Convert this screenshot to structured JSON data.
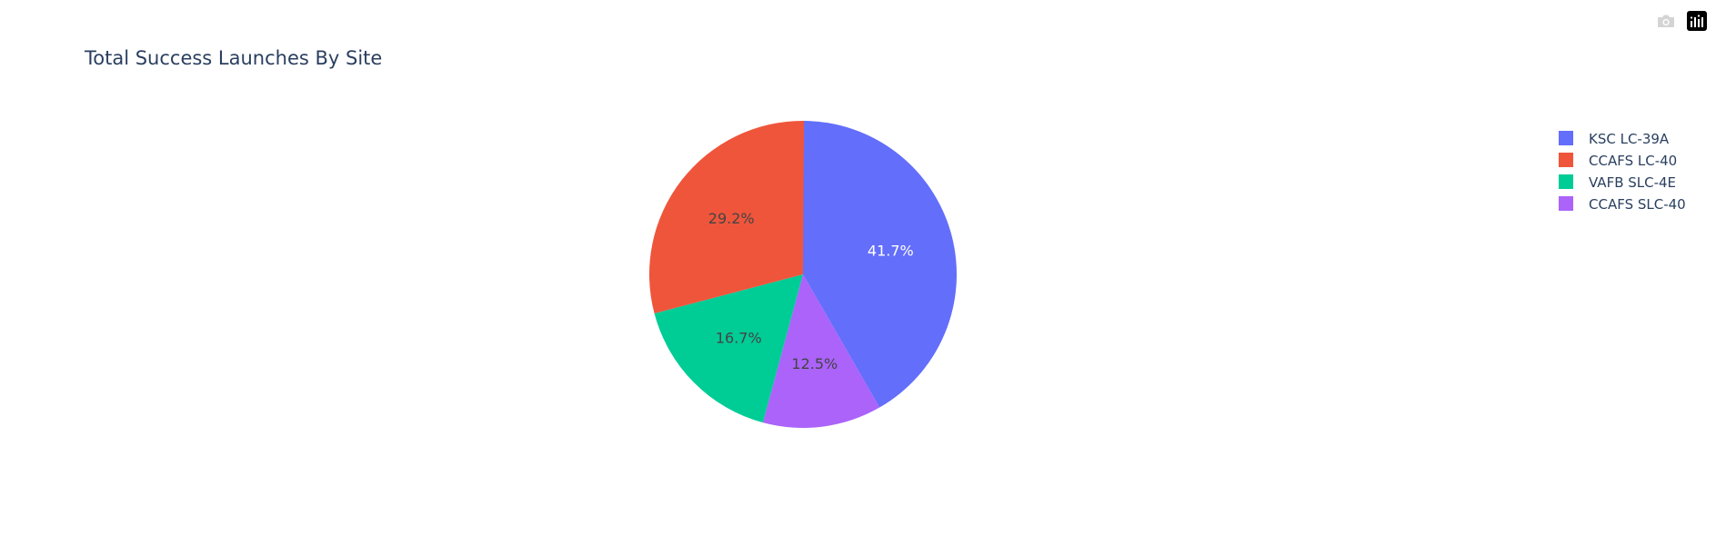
{
  "modebar": {
    "camera_icon": "camera-icon",
    "plotly_logo_icon": "plotly-logo-icon"
  },
  "chart_data": {
    "type": "pie",
    "title": "Total Success Launches By Site",
    "labels": [
      "KSC LC-39A",
      "CCAFS LC-40",
      "VAFB SLC-4E",
      "CCAFS SLC-40"
    ],
    "percentages": [
      41.7,
      29.2,
      16.7,
      12.5
    ],
    "value_labels": [
      "41.7%",
      "29.2%",
      "16.7%",
      "12.5%"
    ],
    "slice_order_clockwise": [
      "KSC LC-39A",
      "CCAFS SLC-40",
      "VAFB SLC-4E",
      "CCAFS LC-40"
    ],
    "colors": {
      "KSC LC-39A": "#636efa",
      "CCAFS LC-40": "#ef553b",
      "VAFB SLC-4E": "#00cc96",
      "CCAFS SLC-40": "#ab63fa"
    },
    "legend_placement": "top-right"
  }
}
